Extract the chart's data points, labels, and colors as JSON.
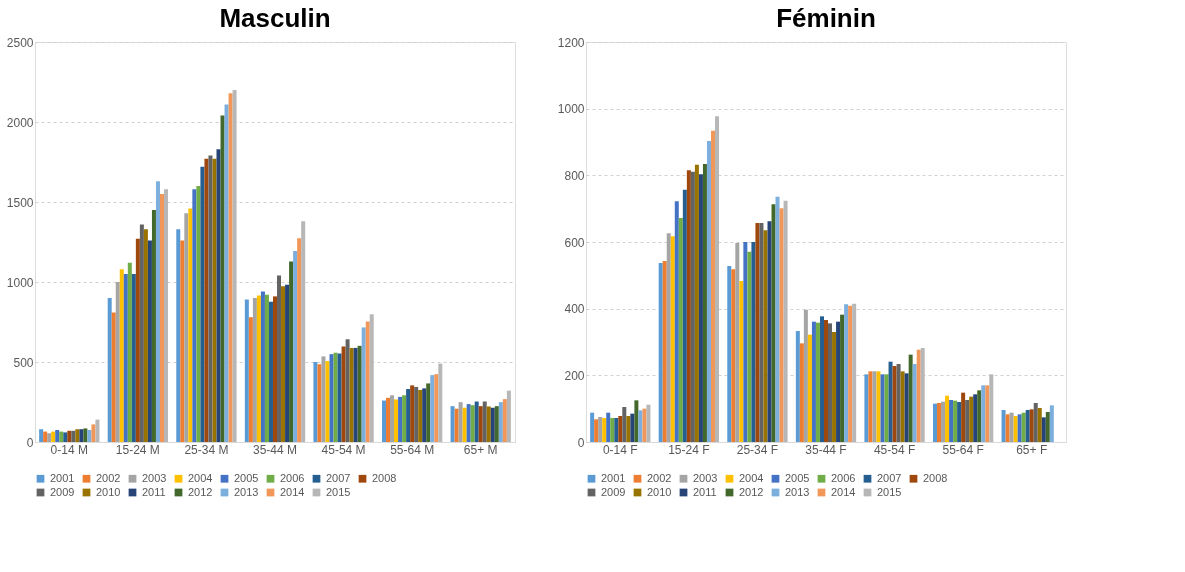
{
  "chart_data": [
    {
      "type": "bar",
      "title": "Masculin",
      "categories": [
        "0-14 M",
        "15-24 M",
        "25-34 M",
        "35-44 M",
        "45-54 M",
        "55-64 M",
        "65+ M"
      ],
      "ylim": [
        0,
        2500
      ],
      "yticks": [
        0,
        500,
        1000,
        1500,
        2000,
        2500
      ],
      "grid": "y",
      "legend": "bottom",
      "series": [
        {
          "name": "2001",
          "color": "#5b9bd5",
          "values": [
            80,
            900,
            1330,
            890,
            500,
            259,
            224
          ]
        },
        {
          "name": "2002",
          "color": "#ed7d31",
          "values": [
            65,
            810,
            1260,
            780,
            486,
            276,
            208
          ]
        },
        {
          "name": "2003",
          "color": "#a5a5a5",
          "values": [
            55,
            1000,
            1430,
            900,
            535,
            292,
            249
          ]
        },
        {
          "name": "2004",
          "color": "#ffc000",
          "values": [
            65,
            1080,
            1460,
            915,
            506,
            266,
            214
          ]
        },
        {
          "name": "2005",
          "color": "#4472c4",
          "values": [
            75,
            1050,
            1580,
            940,
            549,
            282,
            237
          ]
        },
        {
          "name": "2006",
          "color": "#70ad47",
          "values": [
            65,
            1120,
            1600,
            920,
            558,
            292,
            230
          ]
        },
        {
          "name": "2007",
          "color": "#255e91",
          "values": [
            60,
            1050,
            1720,
            876,
            553,
            331,
            253
          ]
        },
        {
          "name": "2008",
          "color": "#9e480e",
          "values": [
            70,
            1270,
            1770,
            910,
            597,
            354,
            224
          ]
        },
        {
          "name": "2009",
          "color": "#636363",
          "values": [
            70,
            1360,
            1790,
            1040,
            642,
            344,
            253
          ]
        },
        {
          "name": "2010",
          "color": "#997300",
          "values": [
            80,
            1330,
            1770,
            973,
            588,
            325,
            222
          ]
        },
        {
          "name": "2011",
          "color": "#264478",
          "values": [
            80,
            1260,
            1830,
            983,
            588,
            335,
            214
          ]
        },
        {
          "name": "2012",
          "color": "#43682b",
          "values": [
            85,
            1450,
            2040,
            1128,
            601,
            366,
            224
          ]
        },
        {
          "name": "2013",
          "color": "#7cafdd",
          "values": [
            75,
            1630,
            2110,
            1193,
            716,
            418,
            249
          ]
        },
        {
          "name": "2014",
          "color": "#f1975a",
          "values": [
            110,
            1550,
            2180,
            1274,
            753,
            424,
            268
          ]
        },
        {
          "name": "2015",
          "color": "#b7b7b7",
          "values": [
            140,
            1580,
            2200,
            1380,
            798,
            490,
            321
          ]
        }
      ]
    },
    {
      "type": "bar",
      "title": "Féminin",
      "categories": [
        "0-14 F",
        "15-24 F",
        "25-34 F",
        "35-44 F",
        "45-54 F",
        "55-64 F",
        "65+ F"
      ],
      "ylim": [
        0,
        1200
      ],
      "yticks": [
        0,
        200,
        400,
        600,
        800,
        1000,
        1200
      ],
      "grid": "y",
      "legend": "bottom",
      "series": [
        {
          "name": "2001",
          "color": "#5b9bd5",
          "values": [
            88,
            537,
            528,
            333,
            203,
            115,
            96
          ]
        },
        {
          "name": "2002",
          "color": "#ed7d31",
          "values": [
            68,
            543,
            518,
            296,
            212,
            117,
            83
          ]
        },
        {
          "name": "2003",
          "color": "#a5a5a5",
          "values": [
            75,
            626,
            597,
            397,
            212,
            121,
            88
          ]
        },
        {
          "name": "2004",
          "color": "#ffc000",
          "values": [
            72,
            617,
            483,
            322,
            212,
            139,
            78
          ]
        },
        {
          "name": "2005",
          "color": "#4472c4",
          "values": [
            88,
            722,
            600,
            361,
            203,
            126,
            83
          ]
        },
        {
          "name": "2006",
          "color": "#70ad47",
          "values": [
            72,
            672,
            571,
            358,
            203,
            124,
            88
          ]
        },
        {
          "name": "2007",
          "color": "#255e91",
          "values": [
            72,
            757,
            600,
            377,
            241,
            120,
            96
          ]
        },
        {
          "name": "2008",
          "color": "#9e480e",
          "values": [
            78,
            815,
            657,
            366,
            228,
            148,
            98
          ]
        },
        {
          "name": "2009",
          "color": "#636363",
          "values": [
            105,
            811,
            657,
            356,
            234,
            126,
            117
          ]
        },
        {
          "name": "2010",
          "color": "#997300",
          "values": [
            78,
            832,
            635,
            330,
            212,
            136,
            102
          ]
        },
        {
          "name": "2011",
          "color": "#264478",
          "values": [
            85,
            803,
            662,
            361,
            206,
            143,
            74
          ]
        },
        {
          "name": "2012",
          "color": "#43682b",
          "values": [
            125,
            834,
            713,
            382,
            262,
            155,
            90
          ]
        },
        {
          "name": "2013",
          "color": "#7cafdd",
          "values": [
            95,
            903,
            736,
            413,
            234,
            170,
            110
          ]
        },
        {
          "name": "2014",
          "color": "#f1975a",
          "values": [
            100,
            934,
            701,
            409,
            277,
            170,
            null
          ]
        },
        {
          "name": "2015",
          "color": "#b7b7b7",
          "values": [
            112,
            977,
            724,
            415,
            282,
            203,
            null
          ]
        }
      ]
    }
  ]
}
